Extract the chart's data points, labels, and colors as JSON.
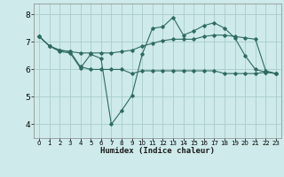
{
  "xlabel": "Humidex (Indice chaleur)",
  "background_color": "#ceeaea",
  "grid_color": "#aacccc",
  "line_color": "#2e6b60",
  "xlim": [
    -0.5,
    23.5
  ],
  "ylim": [
    3.5,
    8.4
  ],
  "xtick_labels": [
    "0",
    "1",
    "2",
    "3",
    "4",
    "5",
    "6",
    "7",
    "8",
    "9",
    "10",
    "11",
    "12",
    "13",
    "14",
    "15",
    "16",
    "17",
    "18",
    "19",
    "20",
    "21",
    "22",
    "23"
  ],
  "xtick_vals": [
    0,
    1,
    2,
    3,
    4,
    5,
    6,
    7,
    8,
    9,
    10,
    11,
    12,
    13,
    14,
    15,
    16,
    17,
    18,
    19,
    20,
    21,
    22,
    23
  ],
  "yticks": [
    4,
    5,
    6,
    7,
    8
  ],
  "series1_x": [
    0,
    1,
    2,
    3,
    4,
    5,
    6,
    7,
    8,
    9,
    10,
    11,
    12,
    13,
    14,
    15,
    16,
    17,
    18,
    19,
    20,
    21,
    22,
    23
  ],
  "series1_y": [
    7.2,
    6.85,
    6.65,
    6.6,
    6.05,
    6.55,
    6.4,
    4.0,
    4.5,
    5.05,
    6.55,
    7.5,
    7.55,
    7.9,
    7.25,
    7.4,
    7.6,
    7.7,
    7.5,
    7.15,
    6.5,
    6.0,
    5.9,
    5.85
  ],
  "series2_x": [
    0,
    1,
    2,
    3,
    4,
    5,
    6,
    7,
    8,
    9,
    10,
    11,
    12,
    13,
    14,
    15,
    16,
    17,
    18,
    19,
    20,
    21,
    22,
    23
  ],
  "series2_y": [
    7.2,
    6.85,
    6.7,
    6.65,
    6.6,
    6.6,
    6.6,
    6.6,
    6.65,
    6.7,
    6.85,
    6.95,
    7.05,
    7.1,
    7.1,
    7.1,
    7.2,
    7.25,
    7.25,
    7.2,
    7.15,
    7.1,
    5.95,
    5.85
  ],
  "series3_x": [
    0,
    1,
    2,
    3,
    4,
    5,
    6,
    7,
    8,
    9,
    10,
    11,
    12,
    13,
    14,
    15,
    16,
    17,
    18,
    19,
    20,
    21,
    22,
    23
  ],
  "series3_y": [
    7.2,
    6.85,
    6.7,
    6.65,
    6.1,
    6.0,
    6.0,
    6.0,
    6.0,
    5.85,
    5.95,
    5.95,
    5.95,
    5.95,
    5.95,
    5.95,
    5.95,
    5.95,
    5.85,
    5.85,
    5.85,
    5.85,
    5.9,
    5.85
  ]
}
